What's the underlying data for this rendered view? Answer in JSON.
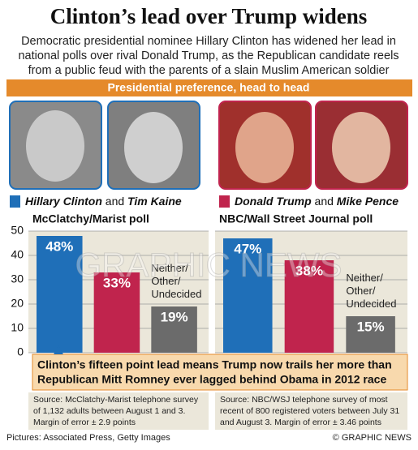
{
  "title": "Clinton’s lead over Trump widens",
  "subtitle": [
    "Democratic presidential nominee Hillary Clinton has widened her lead in",
    "national polls over rival Donald Trump, as the Republican candidate reels",
    "from a public feud with the parents of a slain Muslim American soldier"
  ],
  "banner": "Presidential preference, head to head",
  "legend": [
    {
      "first": "Hillary Clinton",
      "joiner": "and",
      "second": "Tim Kaine",
      "color": "#1f6fb8"
    },
    {
      "first": "Donald Trump",
      "joiner": "and",
      "second": "Mike Pence",
      "color": "#c0244d"
    }
  ],
  "chart_data": [
    {
      "type": "bar",
      "title": "McClatchy/Marist poll",
      "categories": [
        null,
        null,
        "Neither/\nOther/\nUndecided"
      ],
      "values": [
        48,
        33,
        19
      ],
      "value_labels": [
        "48%",
        "33%",
        "19%"
      ],
      "colors": [
        "#1f6fb8",
        "#c0244d",
        "#6b6b6b"
      ],
      "ylim": [
        0,
        50
      ],
      "yticks": [
        0,
        10,
        20,
        30,
        40,
        50
      ],
      "tick_labels": true,
      "grid": true,
      "source": [
        "Source: McClatchy-Marist telephone survey",
        "of 1,132 adults between August 1 and 3.",
        "Margin of error ± 2.9 points"
      ]
    },
    {
      "type": "bar",
      "title": "NBC/Wall Street Journal poll",
      "categories": [
        null,
        null,
        "Neither/\nOther/\nUndecided"
      ],
      "values": [
        47,
        38,
        15
      ],
      "value_labels": [
        "47%",
        "38%",
        "15%"
      ],
      "colors": [
        "#1f6fb8",
        "#c0244d",
        "#6b6b6b"
      ],
      "ylim": [
        0,
        50
      ],
      "yticks": [
        0,
        10,
        20,
        30,
        40,
        50
      ],
      "tick_labels": false,
      "grid": true,
      "source": [
        "Source: NBC/WSJ telephone survey of most",
        "recent of 800 registered voters between July 31",
        "and August 3. Margin of error ± 3.46 points"
      ]
    }
  ],
  "callout": [
    "Clinton’s fifteen point lead means Trump now trails her more than",
    "Republican Mitt Romney ever lagged behind Obama in 2012 race"
  ],
  "watermark": "GRAPHIC NEWS",
  "credit": "Pictures: Associated Press, Getty Images",
  "copyright": "© GRAPHIC NEWS"
}
